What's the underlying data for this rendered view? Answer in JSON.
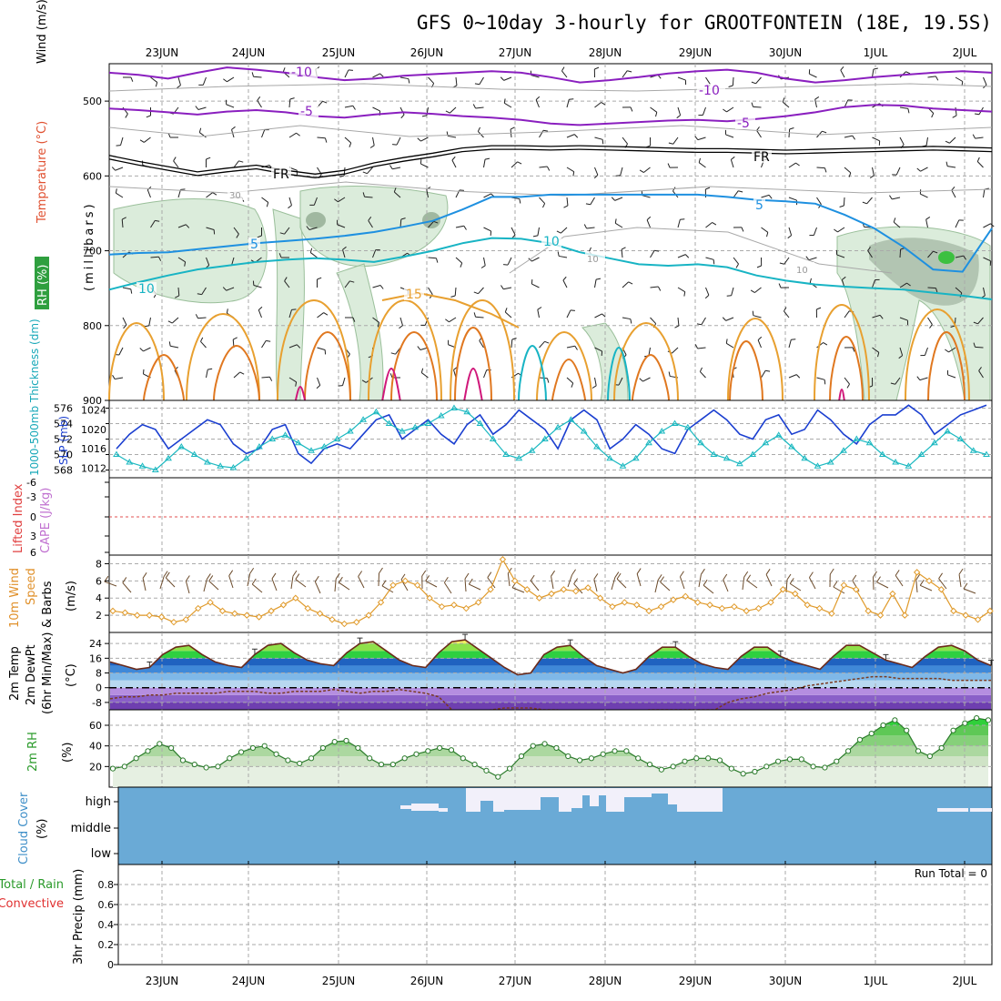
{
  "title": "GFS 0~10day 3-hourly for GROOTFONTEIN (18E, 19.5S)",
  "run_total_label": "Run Total = 0",
  "date_labels": [
    "23JUN",
    "24JUN",
    "25JUN",
    "26JUN",
    "27JUN",
    "28JUN",
    "29JUN",
    "30JUN",
    "1JUL",
    "2JUL"
  ],
  "colors": {
    "purple": "#8a1fbf",
    "black": "#000000",
    "blue": "#1e90e0",
    "cyan": "#18b4c4",
    "orange": "#e8a030",
    "darkorange": "#e07820",
    "magenta": "#d0187a",
    "rhgreen": "#cfe6cf",
    "slp": "#1b3fd0",
    "thick": "#1ab8c0",
    "wind": "#e09a2a",
    "cloud": "#6aaad6"
  },
  "chart_data": [
    {
      "panel": "upper-air",
      "type": "line",
      "ylabel": "(millibars)",
      "side_labels": {
        "wind": "Wind (m/s)",
        "temperature": "Temperature (°C)",
        "rh": "RH (%)"
      },
      "y_ticks": [
        500,
        600,
        700,
        800,
        900
      ],
      "ylim": [
        900,
        450
      ],
      "contour_labels": [
        "-10",
        "-10",
        "-5",
        "-5",
        "FR",
        "FR",
        "5",
        "5",
        "10",
        "10",
        "10",
        "10",
        "15",
        "30"
      ],
      "series": [
        {
          "name": "-10",
          "values": [
            462,
            465,
            470,
            462,
            455,
            458,
            462,
            468,
            472,
            470,
            466,
            464,
            462,
            460,
            462,
            468,
            475,
            472,
            468,
            463,
            460,
            458,
            462,
            470,
            475,
            472,
            468,
            465,
            462,
            460,
            462
          ]
        },
        {
          "name": "-5",
          "values": [
            510,
            512,
            515,
            518,
            514,
            512,
            515,
            520,
            522,
            518,
            515,
            517,
            520,
            522,
            525,
            530,
            532,
            530,
            528,
            526,
            525,
            527,
            524,
            520,
            515,
            508,
            505,
            506,
            510,
            512,
            514
          ]
        },
        {
          "name": "FR",
          "values": [
            575,
            583,
            590,
            597,
            592,
            588,
            595,
            600,
            595,
            585,
            578,
            572,
            565,
            562,
            562,
            563,
            562,
            563,
            564,
            565,
            566,
            566,
            567,
            568,
            567,
            566,
            565,
            564,
            563,
            564,
            565
          ]
        },
        {
          "name": "5",
          "values": [
            705,
            703,
            702,
            698,
            694,
            690,
            687,
            684,
            680,
            675,
            668,
            660,
            645,
            628,
            628,
            625,
            625,
            625,
            625,
            625,
            625,
            628,
            632,
            634,
            637,
            652,
            670,
            695,
            725,
            728,
            670
          ]
        },
        {
          "name": "10",
          "values": [
            752,
            742,
            733,
            725,
            720,
            715,
            712,
            710,
            712,
            715,
            708,
            700,
            690,
            683,
            684,
            690,
            702,
            710,
            718,
            720,
            718,
            722,
            733,
            740,
            745,
            748,
            750,
            752,
            756,
            760,
            765
          ]
        }
      ]
    },
    {
      "panel": "slp-thickness",
      "type": "line",
      "labels": {
        "thickness": "1000-500mb Thickness (dm)",
        "slp": "SLP (mb)"
      },
      "y_ticks_left": [
        568,
        570,
        572,
        574,
        576
      ],
      "y_ticks_right": [
        1012,
        1016,
        1020,
        1024
      ],
      "series": [
        {
          "name": "SLP (mb)",
          "values": [
            1016,
            1019,
            1021,
            1020,
            1016,
            1018,
            1020,
            1022,
            1021,
            1017,
            1015,
            1016,
            1020,
            1021,
            1015,
            1013,
            1016,
            1017,
            1016,
            1019,
            1022,
            1023,
            1018,
            1020,
            1022,
            1019,
            1017,
            1021,
            1023,
            1019,
            1021,
            1024,
            1022,
            1020,
            1016,
            1022,
            1024,
            1022,
            1016,
            1018,
            1021,
            1019,
            1016,
            1015,
            1020,
            1022,
            1024,
            1022,
            1019,
            1018,
            1022,
            1023,
            1019,
            1020,
            1024,
            1022,
            1019,
            1017,
            1021,
            1023,
            1023,
            1025,
            1023,
            1019,
            1021,
            1023,
            1024,
            1025
          ]
        },
        {
          "name": "Thickness (dm)",
          "values": [
            570,
            569,
            568.5,
            568,
            569.5,
            571,
            570,
            569,
            568.5,
            568.3,
            569.5,
            571,
            572,
            572.5,
            571.5,
            570.5,
            571,
            572,
            573,
            574.5,
            575.5,
            574,
            573,
            573.5,
            574,
            575,
            576,
            575.5,
            574,
            572,
            570,
            569.5,
            570.5,
            572,
            573.5,
            574.5,
            573,
            571,
            569.5,
            568.5,
            569.5,
            571.5,
            573,
            574,
            573.5,
            571.5,
            570,
            569.5,
            568.8,
            570,
            571.5,
            572.5,
            571,
            569.5,
            568.5,
            569,
            570.5,
            572,
            571.5,
            570,
            569,
            568.5,
            570,
            571.5,
            573,
            572,
            570.5,
            570
          ]
        }
      ]
    },
    {
      "panel": "cape-li",
      "type": "line",
      "labels": {
        "li": "Lifted Index",
        "cape": "CAPE (J/kg)"
      },
      "y_ticks": [
        "-6",
        "-3",
        "0",
        "3",
        "6"
      ]
    },
    {
      "panel": "wind10m",
      "type": "line",
      "labels": {
        "main": "10m Wind",
        "sub": "Speed",
        "sub2": "& Barbs",
        "unit": "(m/s)"
      },
      "y_ticks": [
        2,
        4,
        6,
        8
      ],
      "ylim": [
        0,
        9
      ],
      "values": [
        2.5,
        2.3,
        2.0,
        2.0,
        1.8,
        1.2,
        1.5,
        2.8,
        3.5,
        2.5,
        2.2,
        2.0,
        1.8,
        2.5,
        3.2,
        4.0,
        2.8,
        2.2,
        1.5,
        1.0,
        1.2,
        2.0,
        3.5,
        5.5,
        6.0,
        5.5,
        4.0,
        3.0,
        3.2,
        2.8,
        3.5,
        5.0,
        8.5,
        6.0,
        5.0,
        4.0,
        4.5,
        5.0,
        4.8,
        5.2,
        4.0,
        3.0,
        3.5,
        3.2,
        2.5,
        3.0,
        3.8,
        4.2,
        3.5,
        3.2,
        2.8,
        3.0,
        2.5,
        2.8,
        3.5,
        5.0,
        4.5,
        3.2,
        2.8,
        2.2,
        5.5,
        5.0,
        2.5,
        2.0,
        4.5,
        2.0,
        7.0,
        6.0,
        5.0,
        2.5,
        2.0,
        1.5,
        2.5
      ]
    },
    {
      "panel": "temperature2m",
      "type": "area",
      "labels": {
        "t": "2m Temp",
        "dp": "2m DewPt",
        "mm": "(6hr Min/Max)",
        "unit": "(°C)"
      },
      "y_ticks": [
        -8,
        0,
        8,
        16,
        24
      ],
      "temp": [
        14,
        12,
        10,
        11,
        18,
        22,
        23,
        18,
        14,
        12,
        11,
        18,
        23,
        24,
        19,
        15,
        13,
        12,
        19,
        24,
        25,
        20,
        15,
        12,
        11,
        19,
        25,
        26,
        21,
        16,
        11,
        7,
        8,
        18,
        22,
        23,
        17,
        12,
        10,
        8,
        10,
        17,
        22,
        22,
        17,
        13,
        11,
        10,
        17,
        22,
        22,
        17,
        14,
        12,
        10,
        17,
        23,
        23,
        19,
        15,
        13,
        11,
        17,
        22,
        23,
        20,
        15,
        12
      ],
      "dewpt": [
        -6,
        -5,
        -5,
        -4,
        -4,
        -3,
        -3,
        -3,
        -3,
        -2,
        -2,
        -2,
        -3,
        -3,
        -2,
        -2,
        -2,
        -1,
        -2,
        -3,
        -2,
        -2,
        -1,
        -2,
        -3,
        -5,
        -12,
        -14,
        -13,
        -12,
        -11,
        -11,
        -11,
        -12,
        -12,
        -13,
        -13,
        -13,
        -13,
        -13,
        -13,
        -12,
        -12,
        -12,
        -12,
        -12,
        -12,
        -8,
        -6,
        -5,
        -3,
        -2,
        -1,
        1,
        2,
        3,
        4,
        5,
        6,
        6,
        5,
        5,
        5,
        5,
        4,
        4,
        4,
        4
      ]
    },
    {
      "panel": "rh2m",
      "type": "area",
      "labels": {
        "rh": "2m RH",
        "unit": "(%)"
      },
      "y_ticks": [
        20,
        40,
        60
      ],
      "values": [
        18,
        20,
        28,
        35,
        42,
        38,
        26,
        22,
        19,
        20,
        28,
        34,
        38,
        40,
        32,
        26,
        23,
        28,
        38,
        44,
        45,
        38,
        28,
        22,
        22,
        28,
        32,
        35,
        38,
        36,
        28,
        22,
        16,
        10,
        18,
        30,
        40,
        42,
        38,
        30,
        26,
        28,
        32,
        35,
        35,
        28,
        22,
        17,
        20,
        25,
        28,
        28,
        26,
        18,
        13,
        15,
        20,
        25,
        27,
        27,
        20,
        19,
        25,
        35,
        46,
        52,
        60,
        65,
        55,
        35,
        30,
        38,
        55,
        62,
        67,
        65
      ]
    },
    {
      "panel": "cloud",
      "type": "area",
      "labels": {
        "main": "Cloud Cover",
        "unit": "(%)"
      },
      "levels": [
        "high",
        "middle",
        "low"
      ]
    },
    {
      "panel": "precip",
      "type": "bar",
      "labels": {
        "total": "Total / Rain",
        "conv": "Convective",
        "main": "3hr Precip (mm)"
      },
      "y_ticks": [
        "0",
        "0.2",
        "0.4",
        "0.6",
        "0.8"
      ],
      "ylim": [
        0,
        1
      ],
      "values": []
    }
  ]
}
